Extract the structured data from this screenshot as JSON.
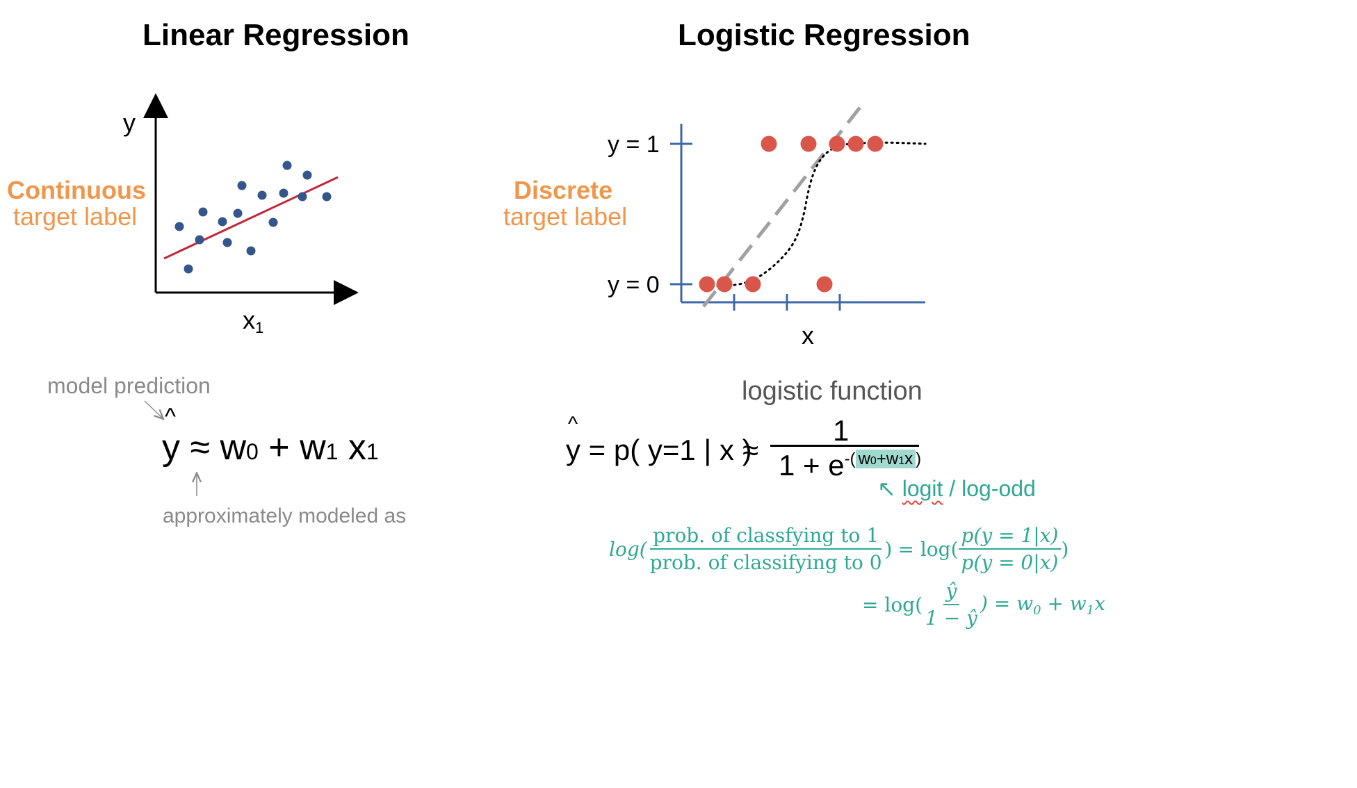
{
  "linear": {
    "title": "Linear Regression",
    "y_axis_label": "y",
    "x_axis_label": "x",
    "x_axis_subscript": "1",
    "target_word": "Continuous",
    "target_rest": "target label",
    "prediction_note": "model prediction",
    "approx_note": "approximately modeled as",
    "equation": {
      "hat": "^",
      "y": "y",
      "approx": "≈",
      "w": "w",
      "sub0": "0",
      "plus": "+",
      "sub1": "1",
      "x": "x"
    },
    "points": [
      [
        258,
        326
      ],
      [
        287,
        345
      ],
      [
        292,
        305
      ],
      [
        320,
        319
      ],
      [
        327,
        349
      ],
      [
        342,
        307
      ],
      [
        348,
        267
      ],
      [
        361,
        361
      ],
      [
        377,
        281
      ],
      [
        393,
        320
      ],
      [
        408,
        278
      ],
      [
        413,
        238
      ],
      [
        435,
        283
      ],
      [
        442,
        252
      ],
      [
        470,
        283
      ],
      [
        271,
        387
      ]
    ],
    "colors": {
      "points": "#34568b",
      "line": "#c0283a"
    }
  },
  "logistic": {
    "title": "Logistic Regression",
    "y1_label": "y = 1",
    "y0_label": "y = 0",
    "x_axis_label": "x",
    "target_word": "Discrete",
    "target_rest": "target label",
    "function_label": "logistic function",
    "equation": {
      "hat": "^",
      "lhs": "y = p( y=1 | x )",
      "approx": "≈",
      "numerator": "1",
      "denominator_base": "1 +  e",
      "exp_prefix": "-(",
      "exp_w": "w",
      "exp_sub0": "0",
      "exp_plus": "+",
      "exp_sub1": "1",
      "exp_x": "x",
      "exp_suffix": ")"
    },
    "logit_arrow": "↖",
    "logit_word": "logit",
    "logodd_rest": " / log-odd",
    "log_odds": {
      "log_word": "log(",
      "num_text": "prob. of classfying to 1",
      "den_text": "prob. of classifying to 0",
      "close": ")",
      "eq_log": "= log(",
      "p_num": "p(y = 1|x)",
      "p_den": "p(y = 0|x)",
      "close2": ")",
      "eq_log2": "= log(",
      "yhat_num": "ŷ",
      "yhat_den": "1 − ŷ",
      "result": ") = w",
      "res_sub0": "0",
      "res_plus": " + w",
      "res_sub1": "1",
      "res_x": "x"
    },
    "points_top": [
      [
        1106,
        207
      ],
      [
        1163,
        207
      ],
      [
        1204,
        207
      ],
      [
        1231,
        207
      ],
      [
        1259,
        207
      ]
    ],
    "points_bottom": [
      [
        1017,
        409
      ],
      [
        1042,
        409
      ],
      [
        1083,
        409
      ],
      [
        1186,
        409
      ]
    ],
    "colors": {
      "points": "#d9574a",
      "axes": "#3d68a8",
      "dashed": "#a0a0a0",
      "teal": "#2ea895"
    }
  }
}
